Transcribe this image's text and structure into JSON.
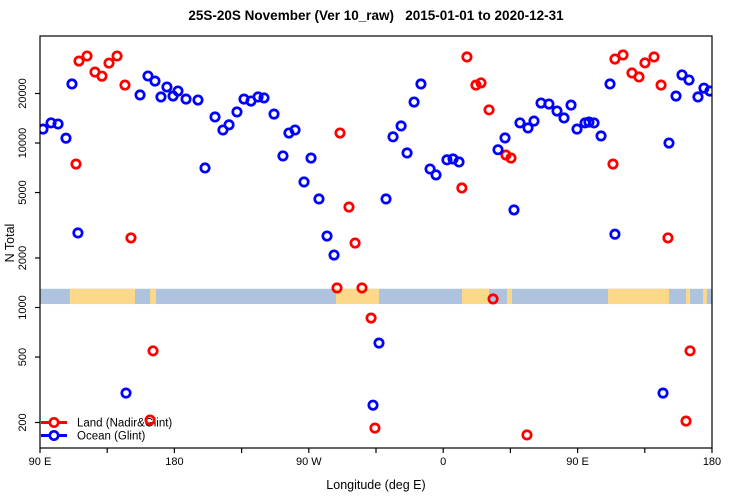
{
  "title": "25S-20S November (Ver 10_raw)   2015-01-01 to 2020-12-31",
  "axes": {
    "x": {
      "label": "Longitude (deg E)",
      "range_deg": [
        90,
        540
      ],
      "minor_tick_step_deg": 45,
      "major_ticks": [
        {
          "deg": 90,
          "label": "90 E"
        },
        {
          "deg": 180,
          "label": "180"
        },
        {
          "deg": 270,
          "label": "90 W"
        },
        {
          "deg": 360,
          "label": "0"
        },
        {
          "deg": 450,
          "label": "90 E"
        },
        {
          "deg": 540,
          "label": "180"
        }
      ]
    },
    "y": {
      "label": "N Total",
      "scale": "log10",
      "ticks": [
        20000,
        10000,
        5000,
        2000,
        1000,
        500,
        200
      ],
      "range": [
        130,
        45000
      ]
    }
  },
  "legend": {
    "items": [
      {
        "label": "Land (Nadir&Glint)",
        "color": "#ff0000"
      },
      {
        "label": "Ocean (Glint)",
        "color": "#0000ff"
      }
    ]
  },
  "chart_data": {
    "type": "scatter",
    "title": "25S-20S November (Ver 10_raw)   2015-01-01 to 2020-12-31",
    "xlabel": "Longitude (deg E)",
    "ylabel": "N Total",
    "x_units": "longitude in continuous deg E from 90 to 540 (axis wraps: 90E,180,90W,0,90E,180)",
    "y_scale": "log10",
    "xlim": [
      90,
      540
    ],
    "ylim": [
      130,
      45000
    ],
    "grid": false,
    "legend_position": "bottom-left inside plot",
    "marker": {
      "shape": "open-circle",
      "radius_px": 4.2,
      "stroke_px": 2.7
    },
    "land_ocean_strip": {
      "description": "map strip of 25S-20S latitude band: ocean=light blue, land=tan",
      "ocean_color": "#aec3de",
      "land_color": "#fbd88a",
      "n_top": 1300,
      "n_bottom": 1050,
      "land_segments_deg": [
        [
          110.0,
          153.6
        ],
        [
          163.7,
          167.7
        ],
        [
          288.2,
          317.0
        ],
        [
          372.6,
          390.7
        ],
        [
          402.7,
          406.1
        ],
        [
          470.4,
          511.2
        ],
        [
          522.6,
          525.3
        ],
        [
          534.0,
          536.6
        ]
      ]
    },
    "series": [
      {
        "name": "Land (Nadir&Glint)",
        "color": "#ff0000",
        "points": [
          [
            116.1,
            31500
          ],
          [
            121.5,
            33800
          ],
          [
            141.6,
            33800
          ],
          [
            136.2,
            30600
          ],
          [
            126.8,
            27000
          ],
          [
            131.5,
            25500
          ],
          [
            146.9,
            22500
          ],
          [
            114.1,
            7450
          ],
          [
            150.9,
            2650
          ],
          [
            165.7,
            545
          ],
          [
            163.7,
            207
          ],
          [
            290.9,
            11500
          ],
          [
            296.9,
            4080
          ],
          [
            301.0,
            2465
          ],
          [
            288.9,
            1315
          ],
          [
            305.6,
            1315
          ],
          [
            311.7,
            863
          ],
          [
            314.3,
            185
          ],
          [
            375.9,
            33350
          ],
          [
            381.9,
            22500
          ],
          [
            385.3,
            23200
          ],
          [
            390.7,
            15900
          ],
          [
            402.0,
            8450
          ],
          [
            405.4,
            8100
          ],
          [
            372.5,
            5330
          ],
          [
            393.4,
            1127
          ],
          [
            416.1,
            168
          ],
          [
            475.0,
            32400
          ],
          [
            480.4,
            34300
          ],
          [
            495.1,
            30700
          ],
          [
            501.2,
            33350
          ],
          [
            486.4,
            26650
          ],
          [
            491.1,
            25200
          ],
          [
            505.9,
            22500
          ],
          [
            473.7,
            7450
          ],
          [
            510.5,
            2650
          ],
          [
            525.3,
            545
          ],
          [
            522.6,
            204
          ]
        ]
      },
      {
        "name": "Ocean (Glint)",
        "color": "#0000ff",
        "points": [
          [
            92.0,
            12150
          ],
          [
            97.4,
            13250
          ],
          [
            102.1,
            13050
          ],
          [
            107.4,
            10700
          ],
          [
            111.4,
            22850
          ],
          [
            115.4,
            2840
          ],
          [
            162.3,
            25550
          ],
          [
            167.0,
            23800
          ],
          [
            157.0,
            19600
          ],
          [
            175.0,
            21900
          ],
          [
            182.4,
            20700
          ],
          [
            171.0,
            19050
          ],
          [
            179.1,
            19300
          ],
          [
            187.8,
            18500
          ],
          [
            195.8,
            18250
          ],
          [
            200.5,
            7050
          ],
          [
            147.6,
            302
          ],
          [
            207.2,
            14400
          ],
          [
            212.5,
            12000
          ],
          [
            216.6,
            12900
          ],
          [
            221.9,
            15450
          ],
          [
            226.6,
            18500
          ],
          [
            231.3,
            18000
          ],
          [
            236.0,
            19050
          ],
          [
            240.0,
            18800
          ],
          [
            246.7,
            15000
          ],
          [
            256.7,
            11500
          ],
          [
            260.8,
            12000
          ],
          [
            252.7,
            8350
          ],
          [
            271.5,
            8100
          ],
          [
            266.8,
            5800
          ],
          [
            276.8,
            4570
          ],
          [
            282.2,
            2720
          ],
          [
            286.9,
            2085
          ],
          [
            313.0,
            255
          ],
          [
            317.0,
            608
          ],
          [
            345.1,
            22850
          ],
          [
            340.5,
            17750
          ],
          [
            331.8,
            12700
          ],
          [
            326.4,
            10900
          ],
          [
            335.8,
            8700
          ],
          [
            351.2,
            6950
          ],
          [
            355.2,
            6400
          ],
          [
            362.5,
            7900
          ],
          [
            366.6,
            8000
          ],
          [
            370.6,
            7670
          ],
          [
            321.7,
            4570
          ],
          [
            396.7,
            9100
          ],
          [
            401.4,
            10740
          ],
          [
            411.4,
            13250
          ],
          [
            416.8,
            12350
          ],
          [
            420.8,
            13600
          ],
          [
            425.5,
            17500
          ],
          [
            407.4,
            3920
          ],
          [
            430.8,
            17260
          ],
          [
            436.2,
            15650
          ],
          [
            440.9,
            14200
          ],
          [
            445.6,
            17000
          ],
          [
            449.6,
            12150
          ],
          [
            455.0,
            13250
          ],
          [
            457.6,
            13400
          ],
          [
            461.0,
            13250
          ],
          [
            465.7,
            11040
          ],
          [
            471.7,
            22850
          ],
          [
            475.0,
            2790
          ],
          [
            511.2,
            10000
          ],
          [
            515.9,
            19300
          ],
          [
            519.9,
            25950
          ],
          [
            524.6,
            24150
          ],
          [
            530.6,
            19050
          ],
          [
            534.6,
            21550
          ],
          [
            538.6,
            20700
          ],
          [
            507.2,
            302
          ]
        ]
      }
    ]
  }
}
